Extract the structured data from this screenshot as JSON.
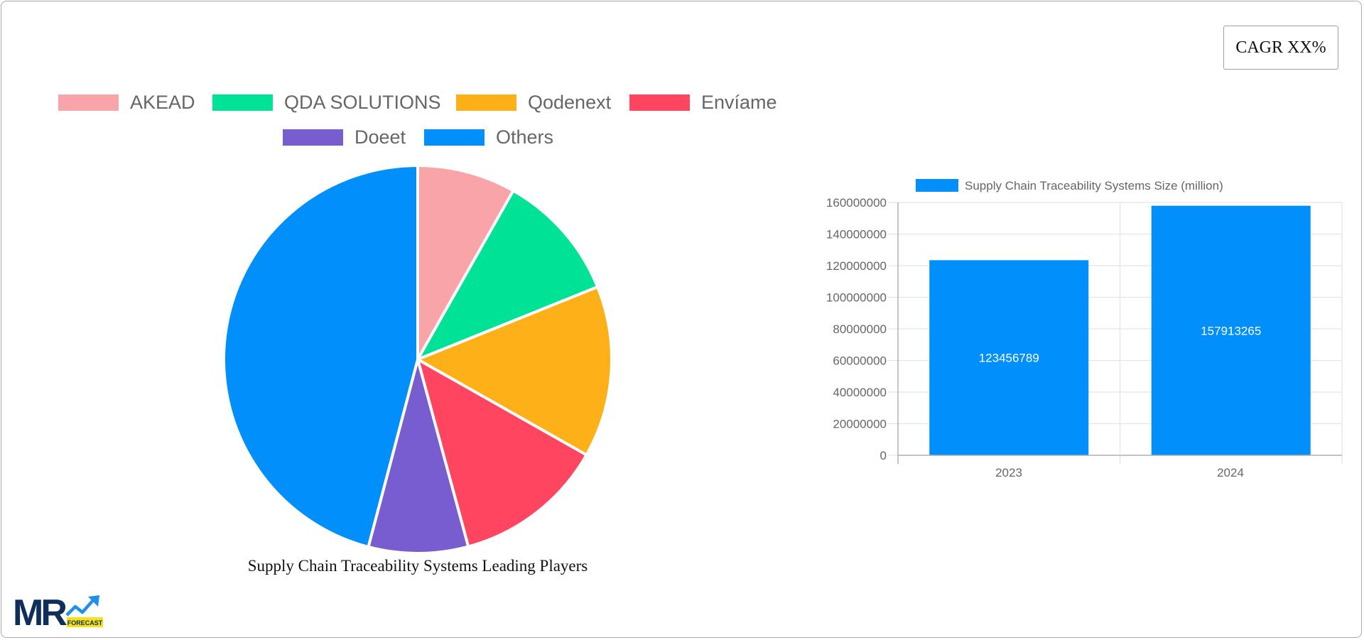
{
  "cagr_badge": {
    "label": "CAGR XX%"
  },
  "pie": {
    "title": "Supply Chain Traceability Systems Leading Players",
    "legend": [
      {
        "label": "AKEAD",
        "color": "#f9a4a8"
      },
      {
        "label": "QDA SOLUTIONS",
        "color": "#00e396"
      },
      {
        "label": "Qodenext",
        "color": "#feb019"
      },
      {
        "label": "Envíame",
        "color": "#ff4560"
      },
      {
        "label": "Doeet",
        "color": "#775dd0"
      },
      {
        "label": "Others",
        "color": "#008ffb"
      }
    ]
  },
  "bar": {
    "legend_label": "Supply Chain Traceability Systems Size (million)",
    "color": "#008ffb",
    "y_ticks": [
      "0",
      "20000000",
      "40000000",
      "60000000",
      "80000000",
      "100000000",
      "120000000",
      "140000000",
      "160000000"
    ],
    "categories": [
      "2023",
      "2024"
    ],
    "values": [
      "123456789",
      "157913265"
    ]
  },
  "logo": {
    "text": "MR",
    "badge": "FORECAST"
  },
  "chart_data": [
    {
      "type": "pie",
      "title": "Supply Chain Traceability Systems Leading Players",
      "categories": [
        "AKEAD",
        "QDA SOLUTIONS",
        "Qodenext",
        "Envíame",
        "Doeet",
        "Others"
      ],
      "values": [
        8.2,
        10.7,
        14.3,
        12.6,
        8.3,
        45.9
      ],
      "colors": [
        "#f9a4a8",
        "#00e396",
        "#feb019",
        "#ff4560",
        "#775dd0",
        "#008ffb"
      ],
      "legend_position": "top"
    },
    {
      "type": "bar",
      "title": "",
      "categories": [
        "2023",
        "2024"
      ],
      "series": [
        {
          "name": "Supply Chain Traceability Systems Size (million)",
          "values": [
            123456789,
            157913265
          ]
        }
      ],
      "xlabel": "",
      "ylabel": "",
      "ylim": [
        0,
        160000000
      ],
      "y_tick_step": 20000000,
      "grid": true,
      "data_labels": true,
      "legend_position": "top"
    }
  ]
}
